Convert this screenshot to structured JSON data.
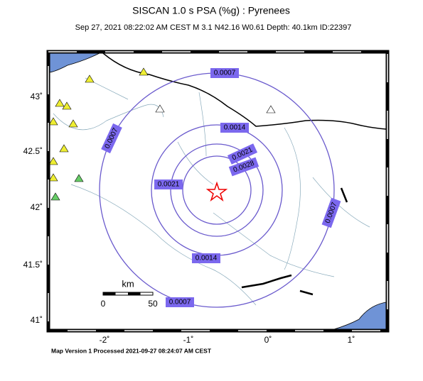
{
  "header": {
    "title": "SISCAN 1.0 s PSA (%g) : Pyrenees",
    "subtitle": "Sep 27, 2021 08:22:02 AM CEST   M 3.1   N42.16 W0.61   Depth: 40.1km   ID:22397"
  },
  "map": {
    "lon_labels": [
      "-2˚",
      "-1˚",
      "0˚",
      "1˚"
    ],
    "lat_labels": [
      "43˚",
      "42.5˚",
      "42˚",
      "41.5˚",
      "41˚"
    ],
    "contour_labels": [
      "0.0007",
      "0.0007",
      "0.0007",
      "0.0007",
      "0.0014",
      "0.0014",
      "0.0021",
      "0.0021",
      "0.0028"
    ],
    "scale_bar": {
      "unit": "km",
      "start": "0",
      "end": "50"
    }
  },
  "footer": "Map Version 1 Processed 2021-09-27 08:24:07 AM CEST"
}
